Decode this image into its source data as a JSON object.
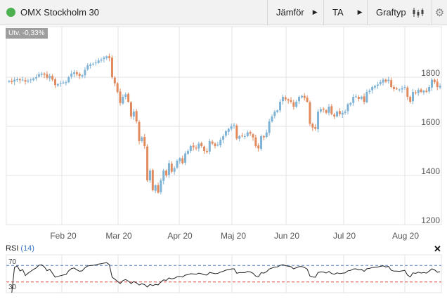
{
  "header": {
    "title": "OMX Stockholm 30",
    "status_color": "#4caf50",
    "compare_label": "Jämför",
    "ta_label": "TA",
    "charttype_label": "Graftyp",
    "settings_icon": "gear-icon",
    "charttype_icon": "candlestick-icon"
  },
  "badge": "Utv. -0,33%",
  "chart_data": {
    "type": "candlestick",
    "x_tick_labels": [
      "Feb 20",
      "Mar 20",
      "Apr 20",
      "Maj 20",
      "Jun 20",
      "Jul 20",
      "Aug 20"
    ],
    "y_tick_labels": [
      "1800",
      "1600",
      "1400",
      "1200"
    ],
    "ylim": [
      1200,
      1900
    ],
    "grid": true,
    "up_color": "#7fb3d5",
    "down_color": "#e08a5e",
    "close": [
      1785,
      1780,
      1790,
      1792,
      1788,
      1790,
      1782,
      1786,
      1790,
      1795,
      1800,
      1812,
      1815,
      1810,
      1798,
      1805,
      1790,
      1768,
      1772,
      1775,
      1778,
      1780,
      1800,
      1815,
      1820,
      1812,
      1805,
      1808,
      1830,
      1848,
      1852,
      1855,
      1860,
      1868,
      1872,
      1880,
      1885,
      1878,
      1800,
      1775,
      1740,
      1695,
      1720,
      1730,
      1700,
      1640,
      1660,
      1620,
      1540,
      1555,
      1520,
      1380,
      1420,
      1340,
      1360,
      1330,
      1380,
      1420,
      1400,
      1450,
      1415,
      1430,
      1460,
      1470,
      1450,
      1490,
      1500,
      1520,
      1515,
      1510,
      1530,
      1520,
      1500,
      1495,
      1540,
      1530,
      1520,
      1525,
      1545,
      1560,
      1580,
      1590,
      1600,
      1605,
      1550,
      1560,
      1560,
      1560,
      1575,
      1570,
      1555,
      1520,
      1510,
      1560,
      1555,
      1575,
      1620,
      1640,
      1660,
      1665,
      1700,
      1720,
      1710,
      1705,
      1700,
      1680,
      1700,
      1720,
      1724,
      1715,
      1700,
      1610,
      1595,
      1590,
      1660,
      1670,
      1668,
      1655,
      1680,
      1650,
      1640,
      1660,
      1650,
      1655,
      1660,
      1690,
      1695,
      1720,
      1722,
      1712,
      1720,
      1700,
      1740,
      1745,
      1760,
      1765,
      1770,
      1780,
      1790,
      1782,
      1790,
      1760,
      1752,
      1752,
      1750,
      1755,
      1760,
      1720,
      1700,
      1740,
      1735,
      1748,
      1740,
      1745,
      1740,
      1760,
      1790,
      1780,
      1760,
      1765
    ]
  },
  "rsi": {
    "label": "RSI",
    "period": "(14)",
    "levels": [
      "70",
      "30"
    ],
    "upper_color": "#4a7cc4",
    "lower_color": "#d9442e",
    "close_icon": "close-icon"
  }
}
